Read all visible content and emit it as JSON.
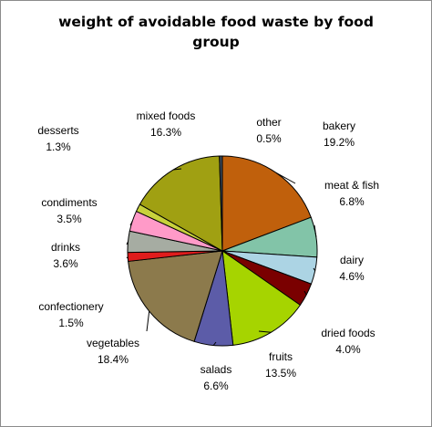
{
  "chart_data": {
    "type": "pie",
    "title_line1": "weight of avoidable food waste by food",
    "title_line2": "group",
    "slices": [
      {
        "name": "bakery",
        "label": "19.2%",
        "value": 19.2,
        "color": "#c0600c"
      },
      {
        "name": "meat & fish",
        "label": "6.8%",
        "value": 6.8,
        "color": "#82c4a8"
      },
      {
        "name": "dairy",
        "label": "4.6%",
        "value": 4.6,
        "color": "#acd4e4"
      },
      {
        "name": "dried foods",
        "label": "4.0%",
        "value": 4.0,
        "color": "#7a0000"
      },
      {
        "name": "fruits",
        "label": "13.5%",
        "value": 13.5,
        "color": "#a6d400"
      },
      {
        "name": "salads",
        "label": "6.6%",
        "value": 6.6,
        "color": "#5c5ca8"
      },
      {
        "name": "vegetables",
        "label": "18.4%",
        "value": 18.4,
        "color": "#8c7a4c"
      },
      {
        "name": "confectionery",
        "label": "1.5%",
        "value": 1.5,
        "color": "#e01c1c"
      },
      {
        "name": "drinks",
        "label": "3.6%",
        "value": 3.6,
        "color": "#a6aca2"
      },
      {
        "name": "condiments",
        "label": "3.5%",
        "value": 3.5,
        "color": "#ff9ac8"
      },
      {
        "name": "desserts",
        "label": "1.3%",
        "value": 1.3,
        "color": "#c8d23c"
      },
      {
        "name": "mixed foods",
        "label": "16.3%",
        "value": 16.3,
        "color": "#a0a012"
      },
      {
        "name": "other",
        "label": "0.5%",
        "value": 0.5,
        "color": "#3c4c5c"
      }
    ]
  }
}
